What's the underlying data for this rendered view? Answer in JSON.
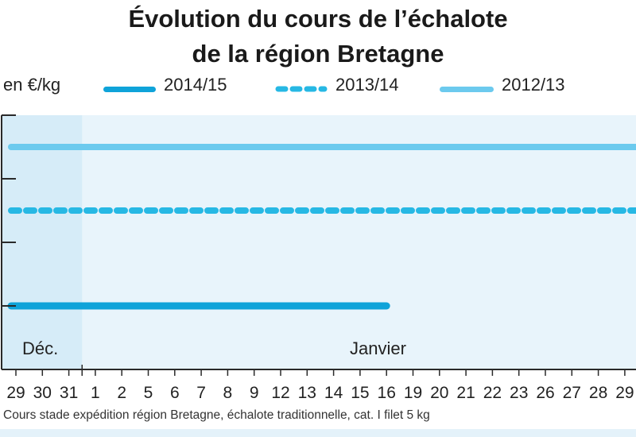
{
  "title": {
    "line1": "Évolution du cours de l’échalote",
    "line2": "de la région Bretagne"
  },
  "unit_label": "en €/kg",
  "footer_note": "Cours stade expédition région Bretagne, échalote traditionnelle, cat. I filet 5 kg",
  "month_labels": [
    "Déc.",
    "Janvier"
  ],
  "colors": {
    "s2014": "#0fa3d9",
    "s2013": "#27b8e4",
    "s2012": "#6ccaee",
    "plot_bg": "#e8f4fb",
    "plot_bg_dec": "#d6ecf8",
    "axis": "#2a2a2a"
  },
  "chart_data": {
    "type": "line",
    "title": "Évolution du cours de l’échalote de la région Bretagne",
    "ylabel": "en €/kg",
    "xlabel": "",
    "categories": [
      "29",
      "30",
      "31",
      "1",
      "2",
      "5",
      "6",
      "7",
      "8",
      "9",
      "12",
      "13",
      "14",
      "15",
      "16",
      "19",
      "20",
      "21",
      "22",
      "23",
      "26",
      "27",
      "28",
      "29"
    ],
    "ylim": [
      0,
      4
    ],
    "y_ticks_labeled": false,
    "legend_position": "top",
    "grid": false,
    "series": [
      {
        "name": "2014/15",
        "style": "solid",
        "color": "#0fa3d9",
        "values": [
          1,
          1,
          1,
          1,
          1,
          1,
          1,
          1,
          1,
          1,
          1,
          1,
          1,
          1,
          1,
          null,
          null,
          null,
          null,
          null,
          null,
          null,
          null,
          null
        ]
      },
      {
        "name": "2013/14",
        "style": "dashed",
        "color": "#27b8e4",
        "values": [
          2.5,
          2.5,
          2.5,
          2.5,
          2.5,
          2.5,
          2.5,
          2.5,
          2.5,
          2.5,
          2.5,
          2.5,
          2.5,
          2.5,
          2.5,
          2.5,
          2.5,
          2.5,
          2.5,
          2.5,
          2.5,
          2.5,
          2.5,
          2.5
        ]
      },
      {
        "name": "2012/13",
        "style": "solid",
        "color": "#6ccaee",
        "values": [
          3.5,
          3.5,
          3.5,
          3.5,
          3.5,
          3.5,
          3.5,
          3.5,
          3.5,
          3.5,
          3.5,
          3.5,
          3.5,
          3.5,
          3.5,
          3.5,
          3.5,
          3.5,
          3.5,
          3.5,
          3.5,
          3.5,
          3.5,
          3.5
        ]
      }
    ]
  }
}
